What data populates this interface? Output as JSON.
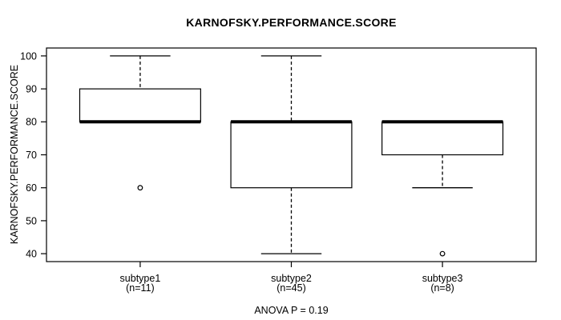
{
  "chart_data": {
    "type": "boxplot",
    "title": "KARNOFSKY.PERFORMANCE.SCORE",
    "ylabel": "KARNOFSKY.PERFORMANCE.SCORE",
    "xlabel": "",
    "annotation": "ANOVA P = 0.19",
    "ylim": [
      40,
      100
    ],
    "yticks": [
      40,
      50,
      60,
      70,
      80,
      90,
      100
    ],
    "grid": false,
    "legend": false,
    "groups": [
      {
        "label": "subtype1",
        "sublabel": "(n=11)",
        "n": 11,
        "whisker_low": 80,
        "q1": 80,
        "median": 80,
        "q3": 90,
        "whisker_high": 100,
        "outliers": [
          60
        ]
      },
      {
        "label": "subtype2",
        "sublabel": "(n=45)",
        "n": 45,
        "whisker_low": 40,
        "q1": 60,
        "median": 80,
        "q3": 80,
        "whisker_high": 100,
        "outliers": []
      },
      {
        "label": "subtype3",
        "sublabel": "(n=8)",
        "n": 8,
        "whisker_low": 60,
        "q1": 70,
        "median": 80,
        "q3": 80,
        "whisker_high": 80,
        "outliers": [
          40
        ]
      }
    ],
    "colors": {
      "line": "#000000",
      "background": "#ffffff"
    }
  }
}
